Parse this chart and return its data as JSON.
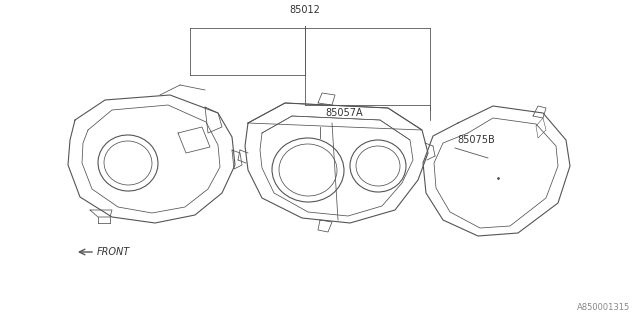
{
  "bg_color": "#ffffff",
  "line_color": "#555555",
  "text_color": "#333333",
  "footer_text": "A850001315",
  "front_label": "FRONT",
  "fig_width": 6.4,
  "fig_height": 3.2,
  "dpi": 100,
  "label_85012": "85012",
  "label_85057A": "85057A",
  "label_85075B": "85075B"
}
